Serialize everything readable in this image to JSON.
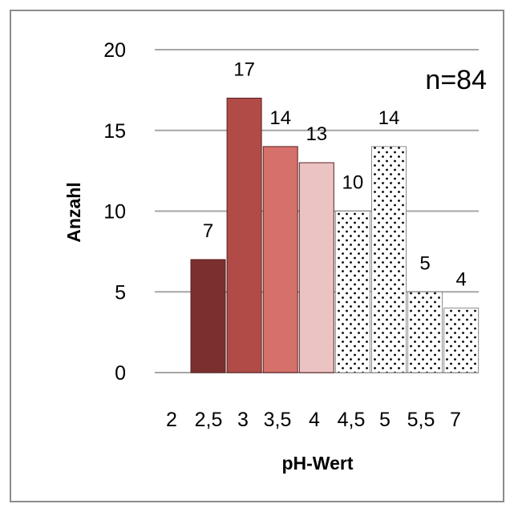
{
  "chart_data": {
    "type": "bar",
    "categories": [
      "2",
      "2,5",
      "3",
      "3,5",
      "4",
      "4,5",
      "5",
      "5,5",
      "7"
    ],
    "values": [
      null,
      7,
      17,
      14,
      13,
      10,
      14,
      5,
      4
    ],
    "data_labels": [
      "",
      "7",
      "17",
      "14",
      "13",
      "10",
      "14",
      "5",
      "4"
    ],
    "xlabel": "pH-Wert",
    "ylabel": "Anzahl",
    "ylim": [
      0,
      20
    ],
    "yticks": [
      0,
      5,
      10,
      15,
      20
    ],
    "ytick_labels": [
      "0",
      "5",
      "10",
      "15",
      "20"
    ],
    "annotation": "n=84",
    "grid": true,
    "legend": "none",
    "bar_fills": [
      "none",
      "#7b2f2f",
      "#b04b48",
      "#d5706b",
      "#ecc3c3",
      "dots",
      "dots",
      "dots",
      "dots"
    ]
  }
}
